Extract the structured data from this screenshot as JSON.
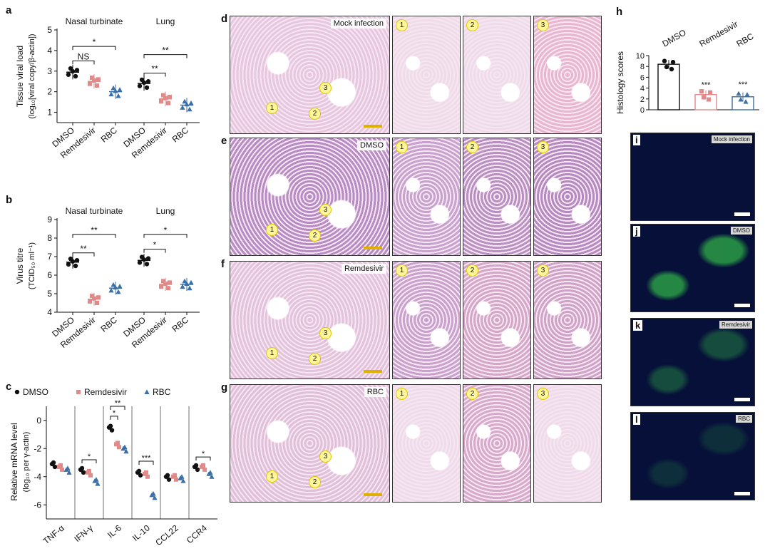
{
  "panels": {
    "a": {
      "letter": "a",
      "ylabel_line1": "Tissue viral load",
      "ylabel_line2": "(log₁₀[viral copy/β-actin])",
      "group1": "Nasal turbinate",
      "group2": "Lung",
      "yticks": [
        "1",
        "2",
        "3",
        "4",
        "5"
      ],
      "xlabels": [
        "DMSO",
        "Remdesivir",
        "RBC",
        "DMSO",
        "Remdesivir",
        "RBC"
      ],
      "sig": [
        "NS",
        "*",
        "**",
        "**"
      ]
    },
    "b": {
      "letter": "b",
      "ylabel_line1": "Virus titre",
      "ylabel_line2": "(TCID₅₀ ml⁻¹)",
      "group1": "Nasal turbinate",
      "group2": "Lung",
      "yticks": [
        "4",
        "5",
        "6",
        "7",
        "8",
        "9"
      ],
      "xlabels": [
        "DMSO",
        "Remdesivir",
        "RBC",
        "DMSO",
        "Remdesivir",
        "RBC"
      ],
      "sig": [
        "**",
        "**",
        "*",
        "*"
      ]
    },
    "c": {
      "letter": "c",
      "legend": [
        "DMSO",
        "Remdesivir",
        "RBC"
      ],
      "ylabel_line1": "Relative mRNA level",
      "ylabel_line2": "(log₁₀ per γ-actin)",
      "yticks": [
        "0",
        "-2",
        "-4",
        "-6"
      ],
      "genes": [
        "TNF-α",
        "IFN-γ",
        "IL-6",
        "IL-10",
        "CCL22",
        "CCR4"
      ],
      "sig": [
        "*",
        "*",
        "**",
        "***",
        "*"
      ]
    },
    "d": {
      "letter": "d",
      "tag": "Mock infection",
      "nums": [
        "1",
        "2",
        "3"
      ]
    },
    "e": {
      "letter": "e",
      "tag": "DMSO",
      "nums": [
        "1",
        "2",
        "3"
      ]
    },
    "f": {
      "letter": "f",
      "tag": "Remdesivir",
      "nums": [
        "1",
        "2",
        "3"
      ]
    },
    "g": {
      "letter": "g",
      "tag": "RBC",
      "nums": [
        "1",
        "2",
        "3"
      ]
    },
    "h": {
      "letter": "h",
      "ylabel": "Histology scores",
      "xlabels": [
        "DMSO",
        "Remdesivir",
        "RBC"
      ],
      "yticks": [
        "0",
        "2",
        "4",
        "6",
        "8",
        "10"
      ],
      "sig": [
        "***",
        "***"
      ]
    },
    "i": {
      "letter": "i",
      "tag": "Mock infection"
    },
    "j": {
      "letter": "j",
      "tag": "DMSO"
    },
    "k": {
      "letter": "k",
      "tag": "Remdesivir"
    },
    "l": {
      "letter": "l",
      "tag": "RBC"
    }
  },
  "colors": {
    "dmso": "#111111",
    "remdesivir": "#e08a8a",
    "rbc": "#3a6fa8",
    "he_bg": "#e8b8d8",
    "he_tissue": "#9b5aa8",
    "fluo_green": "#39d64a"
  },
  "chart_data": [
    {
      "type": "scatter",
      "panel": "a",
      "categories": [
        "DMSO",
        "Remdesivir",
        "RBC",
        "DMSO",
        "Remdesivir",
        "RBC"
      ],
      "groups": [
        "Nasal turbinate",
        "Lung"
      ],
      "ylim": [
        0.5,
        5
      ],
      "series": [
        {
          "name": "DMSO",
          "values": [
            2.95,
            2.4
          ]
        },
        {
          "name": "Remdesivir",
          "values": [
            2.5,
            1.65
          ]
        },
        {
          "name": "RBC",
          "values": [
            2.0,
            1.35
          ]
        }
      ]
    },
    {
      "type": "scatter",
      "panel": "b",
      "categories": [
        "DMSO",
        "Remdesivir",
        "RBC",
        "DMSO",
        "Remdesivir",
        "RBC"
      ],
      "groups": [
        "Nasal turbinate",
        "Lung"
      ],
      "ylim": [
        4,
        9
      ],
      "series": [
        {
          "name": "DMSO",
          "values": [
            6.7,
            6.8
          ]
        },
        {
          "name": "Remdesivir",
          "values": [
            4.7,
            5.5
          ]
        },
        {
          "name": "RBC",
          "values": [
            5.3,
            5.5
          ]
        }
      ]
    },
    {
      "type": "scatter",
      "panel": "c",
      "categories": [
        "TNF-α",
        "IFN-γ",
        "IL-6",
        "IL-10",
        "CCL22",
        "CCR4"
      ],
      "ylim": [
        -7,
        1
      ],
      "series": [
        {
          "name": "DMSO",
          "values": [
            -3.2,
            -3.6,
            -0.6,
            -3.8,
            -4.1,
            -3.4
          ]
        },
        {
          "name": "Remdesivir",
          "values": [
            -3.4,
            -3.8,
            -1.8,
            -3.9,
            -4.1,
            -3.4
          ]
        },
        {
          "name": "RBC",
          "values": [
            -3.6,
            -4.4,
            -2.1,
            -5.4,
            -4.2,
            -3.9
          ]
        }
      ]
    },
    {
      "type": "bar",
      "panel": "h",
      "categories": [
        "DMSO",
        "Remdesivir",
        "RBC"
      ],
      "values": [
        8.4,
        2.8,
        2.4
      ],
      "ylim": [
        0,
        10
      ]
    }
  ]
}
